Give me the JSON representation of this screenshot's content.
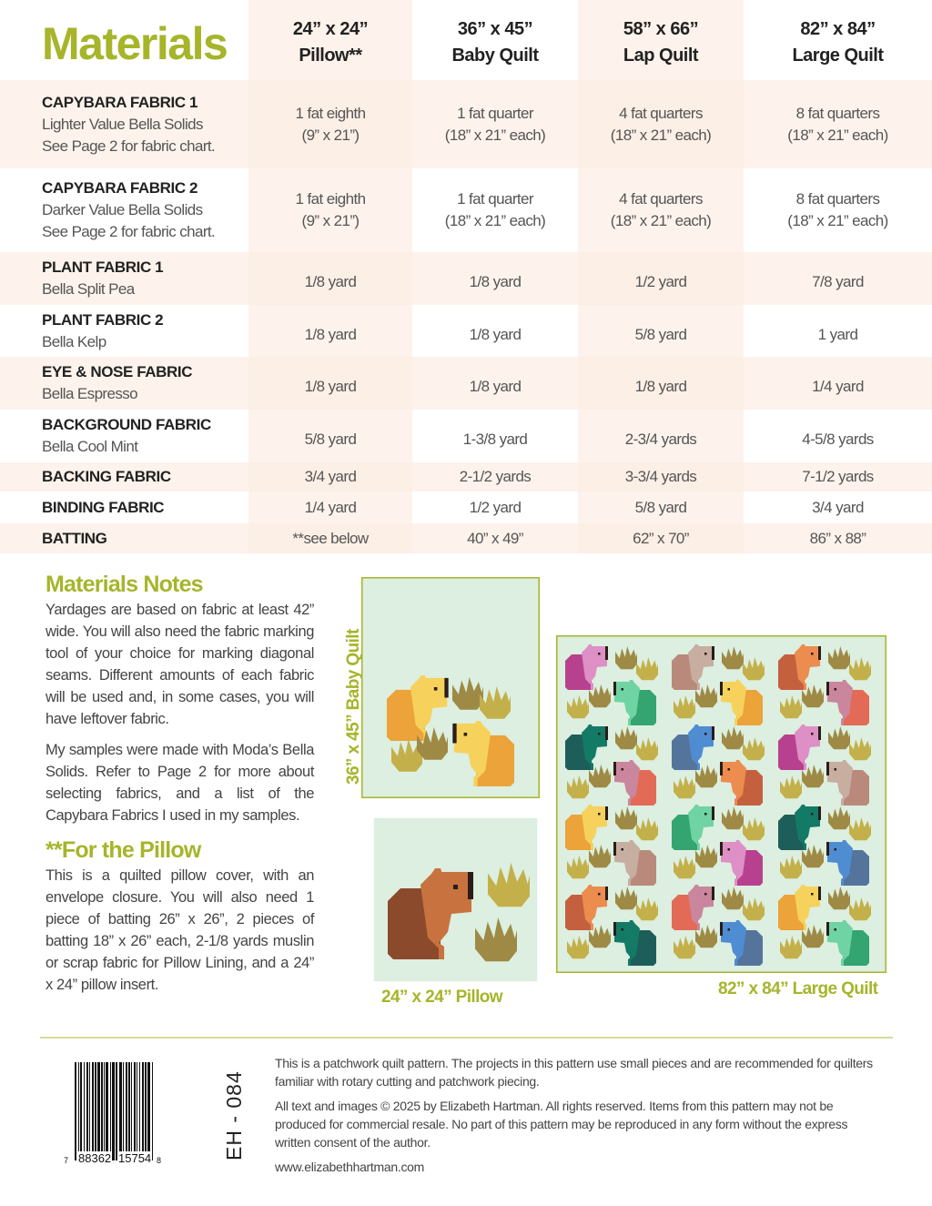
{
  "title": "Materials",
  "columns": [
    {
      "size": "24” x 24”",
      "name": "Pillow**"
    },
    {
      "size": "36” x 45”",
      "name": "Baby Quilt"
    },
    {
      "size": "58” x 66”",
      "name": "Lap Quilt"
    },
    {
      "size": "82” x 84”",
      "name": "Large Quilt"
    }
  ],
  "rows": [
    {
      "label": "CAPYBARA FABRIC 1",
      "sub": [
        "Lighter Value Bella Solids",
        "See Page 2 for fabric chart."
      ],
      "values": [
        [
          "1 fat eighth",
          "(9” x 21”)"
        ],
        [
          "1 fat quarter",
          "(18” x 21” each)"
        ],
        [
          "4 fat quarters",
          "(18” x 21” each)"
        ],
        [
          "8 fat quarters",
          "(18” x 21” each)"
        ]
      ]
    },
    {
      "label": "CAPYBARA FABRIC 2",
      "sub": [
        "Darker Value Bella Solids",
        "See Page 2 for fabric chart."
      ],
      "values": [
        [
          "1 fat eighth",
          "(9” x 21”)"
        ],
        [
          "1 fat quarter",
          "(18” x 21” each)"
        ],
        [
          "4 fat quarters",
          "(18” x 21” each)"
        ],
        [
          "8 fat quarters",
          "(18” x 21” each)"
        ]
      ]
    },
    {
      "label": "PLANT FABRIC 1",
      "sub": [
        "Bella Split Pea"
      ],
      "values": [
        [
          "1/8 yard"
        ],
        [
          "1/8 yard"
        ],
        [
          "1/2 yard"
        ],
        [
          "7/8 yard"
        ]
      ]
    },
    {
      "label": "PLANT FABRIC 2",
      "sub": [
        "Bella Kelp"
      ],
      "values": [
        [
          "1/8 yard"
        ],
        [
          "1/8 yard"
        ],
        [
          "5/8 yard"
        ],
        [
          "1 yard"
        ]
      ]
    },
    {
      "label": "EYE & NOSE FABRIC",
      "sub": [
        "Bella Espresso"
      ],
      "values": [
        [
          "1/8 yard"
        ],
        [
          "1/8 yard"
        ],
        [
          "1/8 yard"
        ],
        [
          "1/4 yard"
        ]
      ]
    },
    {
      "label": "BACKGROUND FABRIC",
      "sub": [
        "Bella Cool Mint"
      ],
      "values": [
        [
          "5/8 yard"
        ],
        [
          "1-3/8 yard"
        ],
        [
          "2-3/4 yards"
        ],
        [
          "4-5/8 yards"
        ]
      ]
    },
    {
      "label": "BACKING FABRIC",
      "sub": [],
      "values": [
        [
          "3/4 yard"
        ],
        [
          "2-1/2 yards"
        ],
        [
          "3-3/4 yards"
        ],
        [
          "7-1/2 yards"
        ]
      ]
    },
    {
      "label": "BINDING FABRIC",
      "sub": [],
      "values": [
        [
          "1/4 yard"
        ],
        [
          "1/2 yard"
        ],
        [
          "5/8 yard"
        ],
        [
          "3/4 yard"
        ]
      ]
    },
    {
      "label": "BATTING",
      "sub": [],
      "values": [
        [
          "**see below"
        ],
        [
          "40” x 49”"
        ],
        [
          "62” x 70”"
        ],
        [
          "86” x 88”"
        ]
      ]
    }
  ],
  "notes": {
    "heading": "Materials Notes",
    "paragraphs": [
      "Yardages are based on fabric at least 42” wide. You will also need the fabric marking tool of your choice for marking diagonal seams. Different amounts of each fabric will be used and, in some cases, you will have leftover fabric.",
      "My samples were made with Moda’s Bella Solids. Refer to Page 2 for more about selecting fabrics, and a list of the Capybara Fabrics I used in my samples."
    ],
    "pillow_heading": "**For the Pillow",
    "pillow_text": "This is a quilted pillow cover, with an envelope closure. You will also need 1 piece of batting 26” x 26”, 2 pieces of batting 18” x 26” each, 2-1/8 yards muslin or scrap fabric for Pillow Lining, and a 24” x 24” pillow insert."
  },
  "captions": {
    "baby": "36” x 45” Baby Quilt",
    "pillow": "24” x 24” Pillow",
    "large": "82” x 84” Large Quilt"
  },
  "footer": {
    "barcode_digits": [
      "7",
      "88362",
      "15754",
      "8"
    ],
    "sku": "EH - 084",
    "p1": "This is a patchwork quilt pattern. The projects in this pattern use small pieces and are recommended for quilters familiar with rotary cutting and patchwork piecing.",
    "p2": "All text and images © 2025 by Elizabeth Hartman. All rights reserved. Items from this pattern may not be produced for commercial resale. No part of this pattern may be reproduced in any form without the express written consent of the author.",
    "website": "www.elizabethhartman.com"
  },
  "colors": {
    "accent": "#a6b52a",
    "background_mint": "#dcefe0",
    "plant_light": "#c4b04a",
    "plant_dark": "#9e8a45",
    "espresso": "#2a1d18",
    "capybaras": {
      "magenta": [
        "#b8418f",
        "#dd8fc6"
      ],
      "green": [
        "#34a470",
        "#6fd3a3"
      ],
      "tan": [
        "#b98a7b",
        "#c8ada1"
      ],
      "yellow": [
        "#eba33a",
        "#f6d25c"
      ],
      "rust": [
        "#c5603f",
        "#ec8c4e"
      ],
      "coral": [
        "#e36a56",
        "#c9869d"
      ],
      "teal": [
        "#1e5e5a",
        "#137a66"
      ],
      "blue": [
        "#55749c",
        "#4f8dd3"
      ],
      "brown": [
        "#8b4a2b",
        "#c8723f"
      ]
    }
  }
}
